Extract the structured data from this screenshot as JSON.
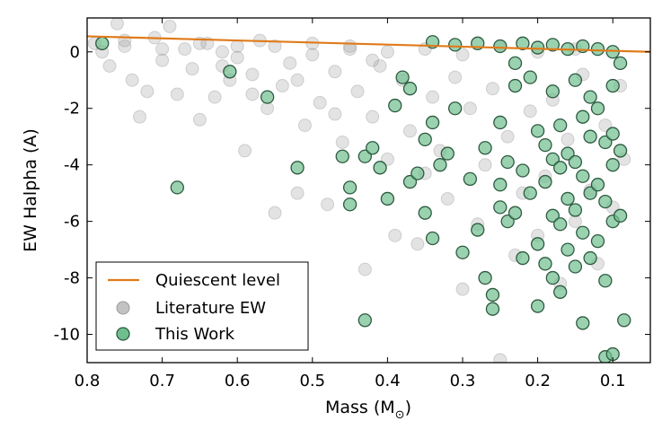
{
  "chart_data": {
    "type": "scatter",
    "xlabel": "Mass (M",
    "xlabel_sub": "⊙",
    "xlabel_close": ")",
    "ylabel": "EW Halpha (A)",
    "xlim": [
      0.8,
      0.05
    ],
    "ylim": [
      -11,
      1.2
    ],
    "x_ticks": [
      0.8,
      0.7,
      0.6,
      0.5,
      0.4,
      0.3,
      0.2,
      0.1
    ],
    "x_tick_labels": [
      "0.8",
      "0.7",
      "0.6",
      "0.5",
      "0.4",
      "0.3",
      "0.2",
      "0.1"
    ],
    "y_ticks": [
      0,
      -2,
      -4,
      -6,
      -8,
      -10
    ],
    "y_tick_labels": [
      "0",
      "-2",
      "-4",
      "-6",
      "-8",
      "-10"
    ],
    "legend": {
      "position": "lower-left",
      "entries": [
        "Quiescent level",
        "Literature EW",
        "This Work"
      ]
    },
    "colors": {
      "quiescent": "#e07b1a",
      "literature": "#9a9a9a",
      "this_work": "#6fbf8e",
      "this_work_edge": "#2e5a40"
    },
    "series": [
      {
        "name": "Quiescent level",
        "kind": "line",
        "x": [
          0.8,
          0.05
        ],
        "y": [
          0.55,
          0.0
        ]
      },
      {
        "name": "Literature EW",
        "kind": "scatter",
        "points": [
          [
            0.79,
            0.3
          ],
          [
            0.78,
            0.0
          ],
          [
            0.77,
            -0.5
          ],
          [
            0.76,
            1.0
          ],
          [
            0.75,
            0.2
          ],
          [
            0.74,
            -1.0
          ],
          [
            0.73,
            -2.3
          ],
          [
            0.72,
            -1.4
          ],
          [
            0.71,
            0.5
          ],
          [
            0.7,
            -0.3
          ],
          [
            0.69,
            0.9
          ],
          [
            0.68,
            -1.5
          ],
          [
            0.67,
            0.1
          ],
          [
            0.66,
            -0.6
          ],
          [
            0.65,
            -2.4
          ],
          [
            0.64,
            0.3
          ],
          [
            0.63,
            -1.6
          ],
          [
            0.62,
            0.0
          ],
          [
            0.61,
            -1.0
          ],
          [
            0.6,
            0.2
          ],
          [
            0.59,
            -3.5
          ],
          [
            0.58,
            -0.8
          ],
          [
            0.57,
            0.4
          ],
          [
            0.56,
            -2.0
          ],
          [
            0.55,
            -5.7
          ],
          [
            0.54,
            -1.2
          ],
          [
            0.53,
            -0.4
          ],
          [
            0.52,
            -5.0
          ],
          [
            0.51,
            -2.6
          ],
          [
            0.5,
            0.3
          ],
          [
            0.49,
            -1.8
          ],
          [
            0.48,
            -5.4
          ],
          [
            0.47,
            -0.7
          ],
          [
            0.46,
            -3.2
          ],
          [
            0.45,
            0.1
          ],
          [
            0.44,
            -1.4
          ],
          [
            0.43,
            -7.7
          ],
          [
            0.42,
            -2.3
          ],
          [
            0.41,
            -0.5
          ],
          [
            0.4,
            -3.8
          ],
          [
            0.39,
            -6.5
          ],
          [
            0.38,
            -1.0
          ],
          [
            0.37,
            -2.8
          ],
          [
            0.36,
            -6.8
          ],
          [
            0.35,
            -4.3
          ],
          [
            0.34,
            -1.6
          ],
          [
            0.33,
            -3.5
          ],
          [
            0.32,
            -5.2
          ],
          [
            0.31,
            -0.9
          ],
          [
            0.3,
            -8.4
          ],
          [
            0.29,
            -2.0
          ],
          [
            0.28,
            -6.1
          ],
          [
            0.27,
            -4.0
          ],
          [
            0.26,
            -1.3
          ],
          [
            0.25,
            -10.9
          ],
          [
            0.24,
            -3.0
          ],
          [
            0.23,
            -7.2
          ],
          [
            0.22,
            -5.0
          ],
          [
            0.21,
            -2.1
          ],
          [
            0.2,
            -6.5
          ],
          [
            0.19,
            -4.4
          ],
          [
            0.18,
            -1.7
          ],
          [
            0.17,
            -8.2
          ],
          [
            0.16,
            -3.1
          ],
          [
            0.15,
            -6.0
          ],
          [
            0.14,
            -0.8
          ],
          [
            0.13,
            -4.9
          ],
          [
            0.12,
            -7.5
          ],
          [
            0.11,
            -2.6
          ],
          [
            0.1,
            -5.5
          ],
          [
            0.09,
            -1.2
          ],
          [
            0.085,
            -3.8
          ],
          [
            0.75,
            0.4
          ],
          [
            0.7,
            0.1
          ],
          [
            0.65,
            0.3
          ],
          [
            0.6,
            -0.2
          ],
          [
            0.55,
            0.2
          ],
          [
            0.5,
            -0.1
          ],
          [
            0.45,
            0.2
          ],
          [
            0.4,
            0.0
          ],
          [
            0.35,
            0.1
          ],
          [
            0.3,
            -0.1
          ],
          [
            0.25,
            0.2
          ],
          [
            0.2,
            0.0
          ],
          [
            0.15,
            0.1
          ],
          [
            0.62,
            -0.5
          ],
          [
            0.58,
            -1.5
          ],
          [
            0.52,
            -1.0
          ],
          [
            0.47,
            -2.2
          ],
          [
            0.42,
            -0.3
          ]
        ]
      },
      {
        "name": "This Work",
        "kind": "scatter",
        "points": [
          [
            0.78,
            0.3
          ],
          [
            0.68,
            -4.8
          ],
          [
            0.61,
            -0.7
          ],
          [
            0.56,
            -1.6
          ],
          [
            0.52,
            -4.1
          ],
          [
            0.46,
            -3.7
          ],
          [
            0.45,
            -4.8
          ],
          [
            0.45,
            -5.4
          ],
          [
            0.43,
            -3.7
          ],
          [
            0.43,
            -9.5
          ],
          [
            0.42,
            -3.4
          ],
          [
            0.41,
            -4.1
          ],
          [
            0.4,
            -5.2
          ],
          [
            0.39,
            -1.9
          ],
          [
            0.38,
            -0.9
          ],
          [
            0.37,
            -4.6
          ],
          [
            0.37,
            -1.3
          ],
          [
            0.36,
            -4.3
          ],
          [
            0.35,
            -3.1
          ],
          [
            0.35,
            -5.7
          ],
          [
            0.34,
            -2.5
          ],
          [
            0.34,
            -6.6
          ],
          [
            0.33,
            -4.0
          ],
          [
            0.32,
            -3.6
          ],
          [
            0.31,
            -2.0
          ],
          [
            0.3,
            -7.1
          ],
          [
            0.29,
            -4.5
          ],
          [
            0.28,
            -6.3
          ],
          [
            0.27,
            -3.4
          ],
          [
            0.27,
            -8.0
          ],
          [
            0.26,
            -8.6
          ],
          [
            0.26,
            -9.1
          ],
          [
            0.25,
            -2.5
          ],
          [
            0.25,
            -4.7
          ],
          [
            0.25,
            -5.5
          ],
          [
            0.24,
            -3.9
          ],
          [
            0.24,
            -6.0
          ],
          [
            0.23,
            -1.2
          ],
          [
            0.23,
            -5.7
          ],
          [
            0.22,
            -4.2
          ],
          [
            0.22,
            -7.3
          ],
          [
            0.21,
            -0.9
          ],
          [
            0.21,
            -5.0
          ],
          [
            0.2,
            -2.8
          ],
          [
            0.2,
            -6.8
          ],
          [
            0.2,
            -9.0
          ],
          [
            0.19,
            -3.3
          ],
          [
            0.19,
            -4.6
          ],
          [
            0.19,
            -7.5
          ],
          [
            0.18,
            -1.4
          ],
          [
            0.18,
            -3.8
          ],
          [
            0.18,
            -5.8
          ],
          [
            0.18,
            -8.0
          ],
          [
            0.17,
            -2.6
          ],
          [
            0.17,
            -4.1
          ],
          [
            0.17,
            -6.1
          ],
          [
            0.17,
            -8.5
          ],
          [
            0.16,
            -3.6
          ],
          [
            0.16,
            -5.2
          ],
          [
            0.16,
            -7.0
          ],
          [
            0.15,
            -1.0
          ],
          [
            0.15,
            -3.9
          ],
          [
            0.15,
            -5.6
          ],
          [
            0.15,
            -7.6
          ],
          [
            0.14,
            -2.3
          ],
          [
            0.14,
            -4.4
          ],
          [
            0.14,
            -6.4
          ],
          [
            0.14,
            -9.6
          ],
          [
            0.13,
            -1.6
          ],
          [
            0.13,
            -3.0
          ],
          [
            0.13,
            -5.0
          ],
          [
            0.13,
            -7.3
          ],
          [
            0.12,
            -2.0
          ],
          [
            0.12,
            -4.7
          ],
          [
            0.12,
            -6.7
          ],
          [
            0.11,
            -3.2
          ],
          [
            0.11,
            -5.3
          ],
          [
            0.11,
            -8.1
          ],
          [
            0.11,
            -10.8
          ],
          [
            0.1,
            -1.2
          ],
          [
            0.1,
            -2.9
          ],
          [
            0.1,
            -4.0
          ],
          [
            0.1,
            -6.0
          ],
          [
            0.1,
            -10.7
          ],
          [
            0.09,
            -0.4
          ],
          [
            0.09,
            -3.5
          ],
          [
            0.09,
            -5.8
          ],
          [
            0.085,
            -9.5
          ],
          [
            0.34,
            0.35
          ],
          [
            0.31,
            0.25
          ],
          [
            0.28,
            0.3
          ],
          [
            0.25,
            0.2
          ],
          [
            0.22,
            0.3
          ],
          [
            0.2,
            0.15
          ],
          [
            0.18,
            0.25
          ],
          [
            0.16,
            0.1
          ],
          [
            0.14,
            0.2
          ],
          [
            0.12,
            0.1
          ],
          [
            0.1,
            0.0
          ],
          [
            0.23,
            -0.4
          ]
        ]
      }
    ]
  }
}
